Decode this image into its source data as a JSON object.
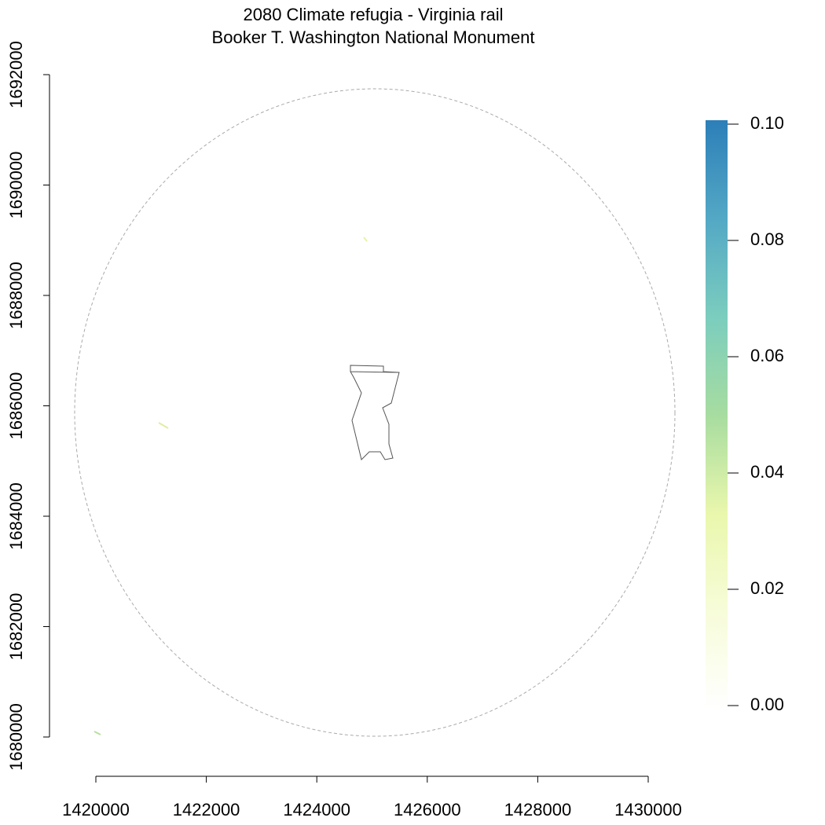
{
  "chart_data": {
    "type": "raster",
    "title": "2080 Climate refugia - Virginia rail",
    "subtitle": "Booker T. Washington National Monument",
    "xlim": [
      1420000,
      1430000
    ],
    "ylim": [
      1680000,
      1692000
    ],
    "xticks": [
      1420000,
      1422000,
      1424000,
      1426000,
      1428000,
      1430000
    ],
    "yticks": [
      1680000,
      1682000,
      1684000,
      1686000,
      1688000,
      1690000,
      1692000
    ],
    "zlim": [
      0,
      0.1
    ],
    "zticks": [
      {
        "value": 0,
        "label": "0.00"
      },
      {
        "value": 0.02,
        "label": "0.02"
      },
      {
        "value": 0.04,
        "label": "0.04"
      },
      {
        "value": 0.06,
        "label": "0.06"
      },
      {
        "value": 0.08,
        "label": "0.08"
      },
      {
        "value": 0.1,
        "label": "0.10"
      }
    ],
    "colors": [
      "#ffffff",
      "#f7fcd9",
      "#e9f7ac",
      "#a7dca0",
      "#7bcdbe",
      "#53a8c5",
      "#2c7fb8"
    ]
  }
}
